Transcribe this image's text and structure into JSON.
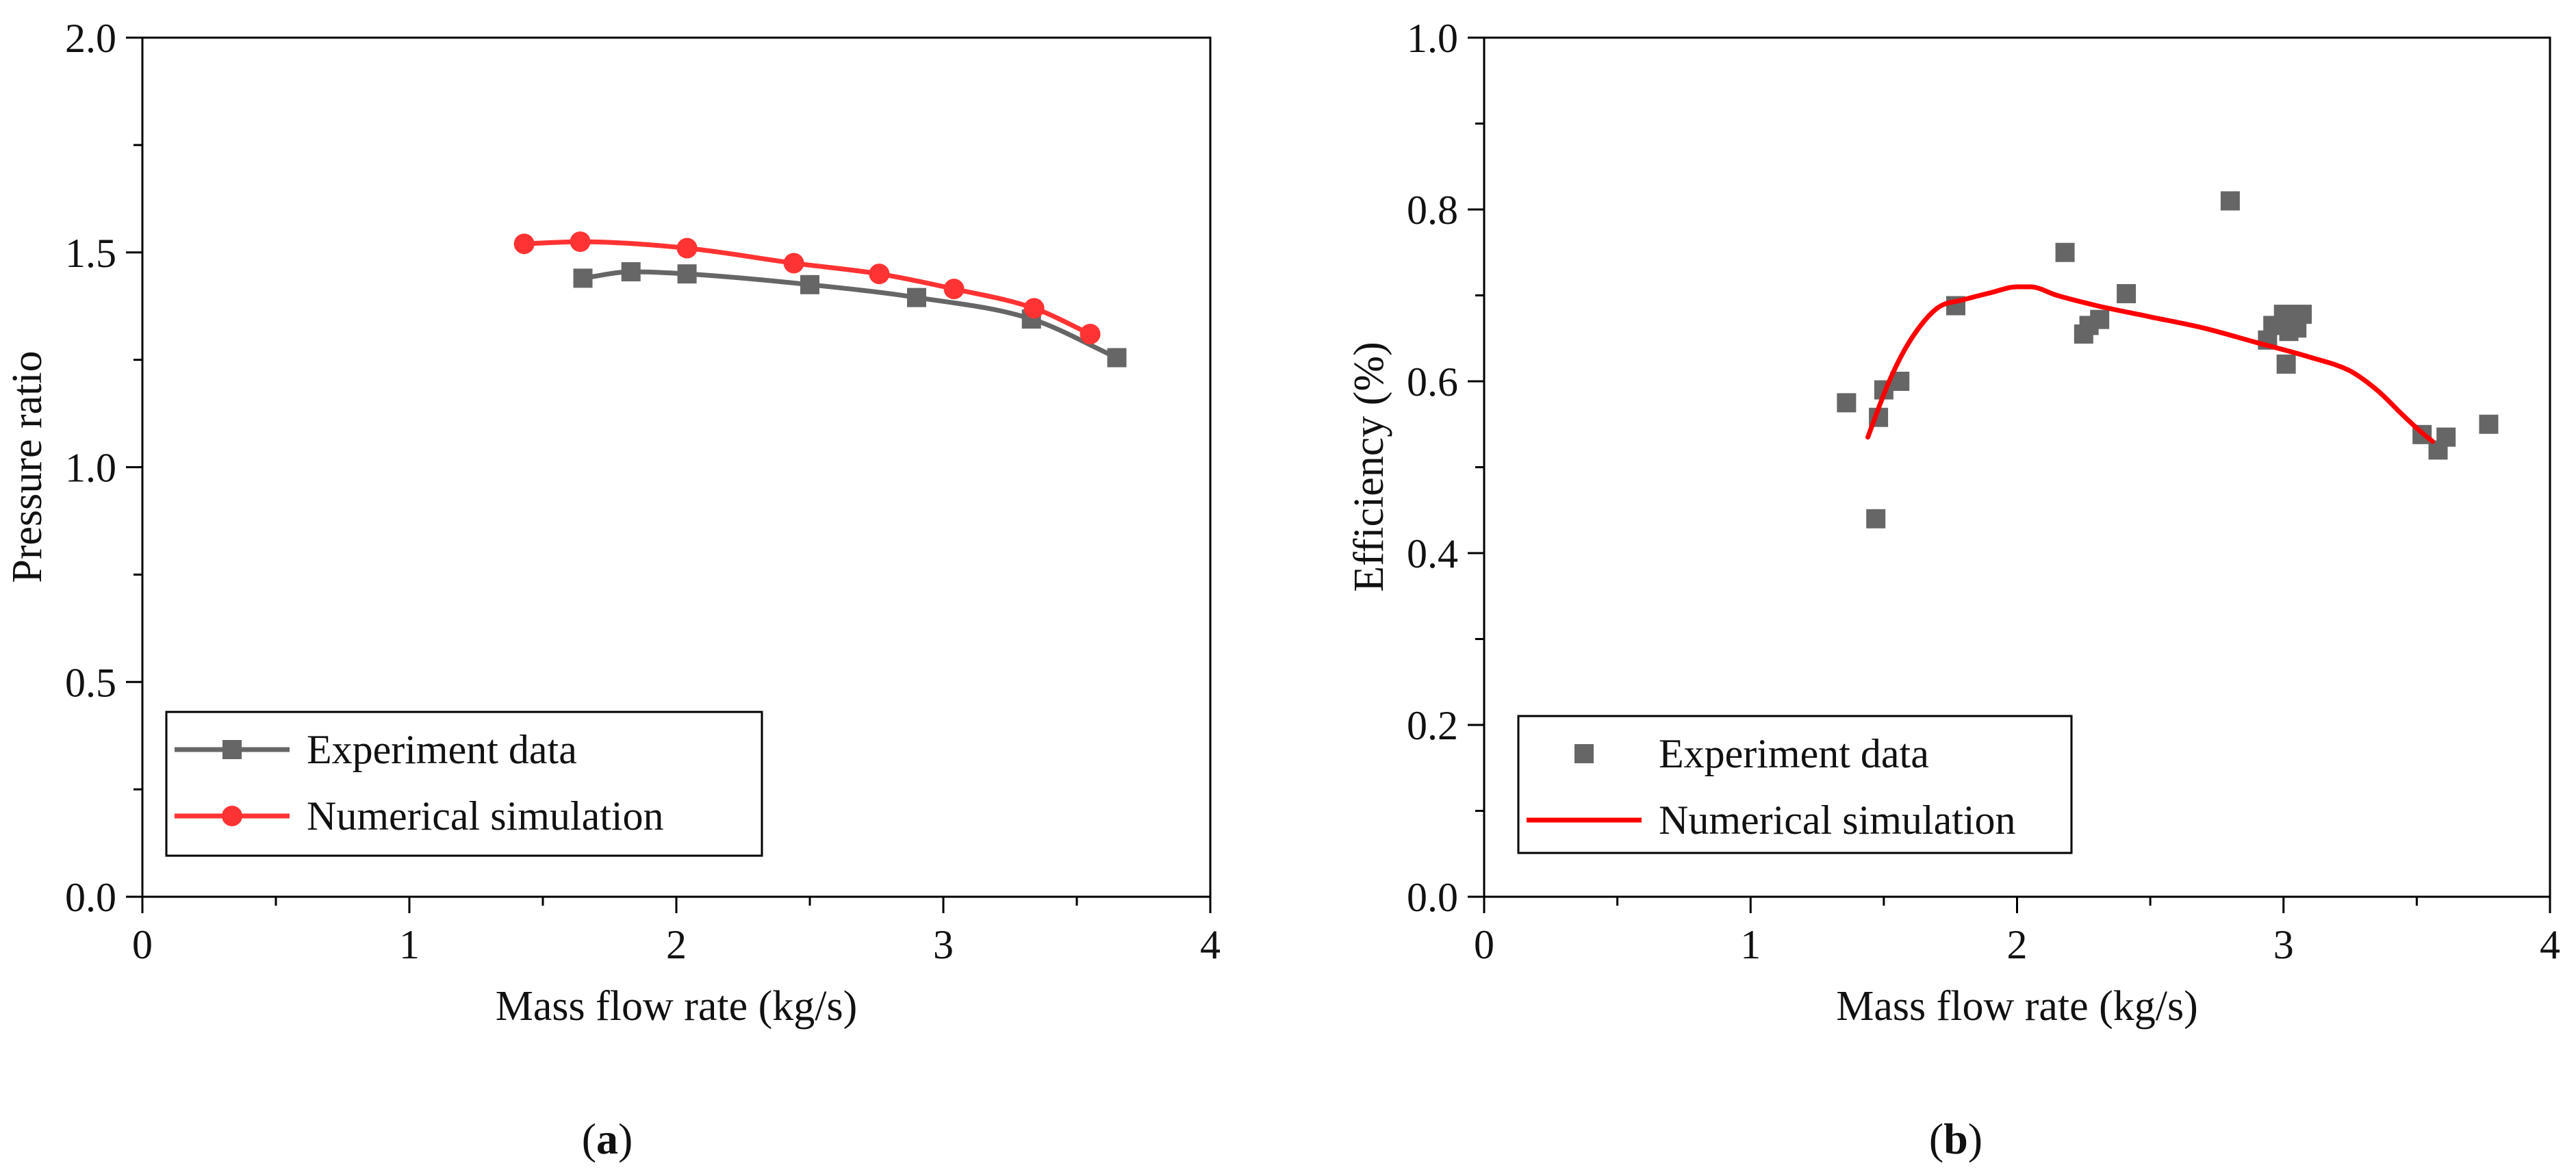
{
  "chart_data": [
    {
      "type": "line",
      "panel_label": {
        "open": "(",
        "letter": "a",
        "close": ")"
      },
      "title": "",
      "xlabel": "Mass flow rate (kg/s)",
      "ylabel": "Pressure ratio",
      "xlim": [
        0,
        4
      ],
      "ylim": [
        0,
        2.0
      ],
      "x_ticks": [
        0,
        1,
        2,
        3,
        4
      ],
      "x_tick_labels": [
        "0",
        "1",
        "2",
        "3",
        "4"
      ],
      "y_ticks": [
        0,
        0.5,
        1.0,
        1.5,
        2.0
      ],
      "y_tick_labels": [
        "0.0",
        "0.5",
        "1.0",
        "1.5",
        "2.0"
      ],
      "grid": false,
      "legend_position": "bottom-left",
      "series": [
        {
          "name": "Experiment data",
          "color": "#666666",
          "marker": "square",
          "line": true,
          "x": [
            1.65,
            1.83,
            2.04,
            2.5,
            2.9,
            3.33,
            3.65
          ],
          "y": [
            1.44,
            1.455,
            1.45,
            1.425,
            1.395,
            1.345,
            1.255
          ]
        },
        {
          "name": "Numerical simulation",
          "color": "#ff3333",
          "marker": "circle",
          "line": true,
          "x": [
            1.43,
            1.64,
            2.04,
            2.44,
            2.76,
            3.04,
            3.34,
            3.55
          ],
          "y": [
            1.52,
            1.525,
            1.51,
            1.475,
            1.45,
            1.415,
            1.37,
            1.31
          ]
        }
      ]
    },
    {
      "type": "scatter",
      "panel_label": {
        "open": "(",
        "letter": "b",
        "close": ")"
      },
      "title": "",
      "xlabel": "Mass flow rate (kg/s)",
      "ylabel": "Efficiency (%)",
      "xlim": [
        0,
        4
      ],
      "ylim": [
        0,
        1.0
      ],
      "x_ticks": [
        0,
        1,
        2,
        3,
        4
      ],
      "x_tick_labels": [
        "0",
        "1",
        "2",
        "3",
        "4"
      ],
      "y_ticks": [
        0,
        0.2,
        0.4,
        0.6,
        0.8,
        1.0
      ],
      "y_tick_labels": [
        "0.0",
        "0.2",
        "0.4",
        "0.6",
        "0.8",
        "1.0"
      ],
      "grid": false,
      "legend_position": "bottom-left",
      "series": [
        {
          "name": "Experiment data",
          "color": "#666666",
          "marker": "square",
          "line": false,
          "x": [
            1.36,
            1.47,
            1.48,
            1.5,
            1.56,
            1.77,
            2.18,
            2.25,
            2.27,
            2.31,
            2.41,
            2.8,
            2.94,
            2.96,
            3.0,
            3.01,
            3.02,
            3.03,
            3.05,
            3.07,
            3.52,
            3.58,
            3.61,
            3.77
          ],
          "y": [
            0.575,
            0.44,
            0.558,
            0.59,
            0.6,
            0.688,
            0.75,
            0.655,
            0.665,
            0.672,
            0.702,
            0.81,
            0.648,
            0.665,
            0.678,
            0.62,
            0.658,
            0.668,
            0.662,
            0.678,
            0.538,
            0.52,
            0.535,
            0.55
          ]
        },
        {
          "name": "Numerical simulation",
          "color": "#ff0000",
          "marker": "none",
          "line": true,
          "x": [
            1.44,
            1.52,
            1.6,
            1.7,
            1.8,
            1.9,
            2.0,
            2.05,
            2.15,
            2.3,
            2.5,
            2.7,
            2.9,
            3.1,
            3.25,
            3.35,
            3.45,
            3.52,
            3.56
          ],
          "y": [
            0.535,
            0.6,
            0.648,
            0.685,
            0.695,
            0.703,
            0.71,
            0.71,
            0.7,
            0.688,
            0.675,
            0.662,
            0.645,
            0.628,
            0.612,
            0.59,
            0.56,
            0.54,
            0.53
          ]
        }
      ]
    }
  ]
}
